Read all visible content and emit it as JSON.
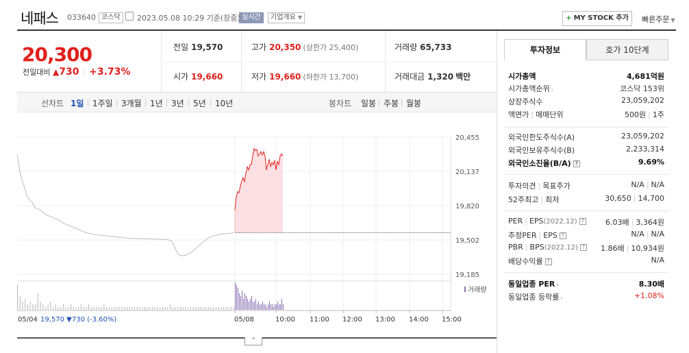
{
  "header": {
    "name": "네패스",
    "code": "033640",
    "market": "코스닥",
    "date": "2023.05.08 10:29 기준(장중)",
    "live": "실시간",
    "corp_overview": "기업개요",
    "mystock": "MY STOCK 추가",
    "quick_order": "빠른주문"
  },
  "price": {
    "current": "20,300",
    "change_label": "전일대비",
    "change": "730",
    "change_pct": "+3.73%",
    "prev_label": "전일",
    "prev": "19,570",
    "high_label": "고가",
    "high": "20,350",
    "upper_limit": "(상한가 25,400)",
    "volume_label": "거래량",
    "volume": "65,733",
    "open_label": "시가",
    "open": "19,660",
    "low_label": "저가",
    "low": "19,660",
    "lower_limit": "(하한가 13,700)",
    "amount_label": "거래대금",
    "amount": "1,320",
    "amount_unit": "백만"
  },
  "tabs": {
    "line_chart": "선차트",
    "periods": [
      "1일",
      "1주일",
      "3개월",
      "1년",
      "3년",
      "5년",
      "10년"
    ],
    "candle_chart": "봉차트",
    "candles": [
      "일봉",
      "주봉",
      "월봉"
    ]
  },
  "chart_data": {
    "type": "line",
    "price_ticks": [
      "20,455",
      "20,137",
      "19,820",
      "19,502",
      "19,185"
    ],
    "ylim": [
      19185,
      20455
    ],
    "prev_close": 19570,
    "volume_label": "거래량",
    "x_labels": [
      "05/04",
      "05/08",
      "10:00",
      "11:00",
      "12:00",
      "13:00",
      "14:00",
      "15:00"
    ],
    "prev_day_summary": {
      "close": "19,570",
      "change": "730",
      "pct": "(-3.60%)"
    },
    "prev_day_series": [
      20300,
      20150,
      20050,
      19980,
      19900,
      19870,
      19850,
      19800,
      19790,
      19780,
      19760,
      19740,
      19730,
      19720,
      19710,
      19700,
      19690,
      19680,
      19660,
      19650,
      19640,
      19630,
      19620,
      19610,
      19600,
      19590,
      19580,
      19570,
      19565,
      19560,
      19555,
      19550,
      19548,
      19545,
      19543,
      19540,
      19538,
      19535,
      19532,
      19530,
      19528,
      19525,
      19522,
      19520,
      19518,
      19517,
      19516,
      19515,
      19515,
      19514,
      19513,
      19512,
      19512,
      19511,
      19510,
      19510,
      19509,
      19508,
      19507,
      19505,
      19500,
      19480,
      19430,
      19380,
      19360,
      19355,
      19360,
      19370,
      19380,
      19400,
      19420,
      19440,
      19460,
      19480,
      19500,
      19520,
      19530,
      19540,
      19545,
      19550,
      19555,
      19558,
      19560,
      19562,
      19565,
      19570
    ],
    "today_series": [
      19780,
      19900,
      19950,
      19940,
      20000,
      20050,
      20080,
      20040,
      20120,
      20180,
      20150,
      20200,
      20200,
      20280,
      20350,
      20330,
      20340,
      20280,
      20300,
      20320,
      20290,
      20320,
      20280,
      20150,
      20200,
      20250,
      20180,
      20220,
      20200,
      20240,
      20150,
      20230,
      20200,
      20280,
      20300,
      20280
    ],
    "prev_volume": [
      9,
      5,
      3,
      4,
      2,
      3,
      2,
      2,
      6,
      3,
      2,
      1,
      2,
      3,
      1,
      2,
      1,
      1,
      2,
      1,
      1,
      2,
      1,
      1,
      1,
      2,
      1,
      1,
      2,
      1,
      1,
      1,
      1,
      1,
      2,
      1,
      1,
      1,
      1,
      1,
      1,
      1,
      1,
      1,
      1,
      1,
      1,
      1,
      1,
      1,
      1,
      1,
      1,
      1,
      1,
      1,
      1,
      1,
      1,
      1,
      2,
      1,
      1,
      1,
      1,
      1,
      1,
      1,
      1,
      1,
      1,
      1,
      1,
      1,
      1,
      1,
      1,
      1,
      1,
      1,
      1,
      1,
      1,
      1,
      1,
      1
    ],
    "today_volume": [
      10,
      9,
      8,
      6,
      5,
      7,
      4,
      6,
      5,
      4,
      3,
      4,
      5,
      3,
      3,
      4,
      2,
      3,
      2,
      2,
      3,
      2,
      2,
      1,
      2,
      3,
      2,
      2,
      1,
      2,
      2,
      3,
      2,
      2,
      4,
      2
    ]
  },
  "panel": {
    "tab_info": "투자정보",
    "tab_quote": "호가 10단계",
    "rows1": [
      {
        "l": "시가총액",
        "r": "4,681억원"
      },
      {
        "l": "시가총액순위",
        "r": "코스닥 153위"
      },
      {
        "l": "상장주식수",
        "r": "23,059,202"
      },
      {
        "l1": "액면가",
        "l2": "매매단위",
        "r1": "500원",
        "r2": "1주"
      }
    ],
    "rows2": [
      {
        "l": "외국인한도주식수(A)",
        "r": "23,059,202"
      },
      {
        "l": "외국인보유주식수(B)",
        "r": "2,233,314"
      },
      {
        "l": "외국인소진율(B/A)",
        "r": "9.69%"
      }
    ],
    "rows3": [
      {
        "l1": "투자의견",
        "l2": "목표주가",
        "r1": "N/A",
        "r2": "N/A"
      },
      {
        "l1": "52주최고",
        "l2": "최저",
        "r1": "30,650",
        "r2": "14,700"
      }
    ],
    "rows4": [
      {
        "l1": "PER",
        "l2": "EPS",
        "note": "(2022.12)",
        "r1": "6.03배",
        "r2": "3,364원"
      },
      {
        "l1": "추정PER",
        "l2": "EPS",
        "r1": "N/A",
        "r2": "N/A"
      },
      {
        "l1": "PBR",
        "l2": "BPS",
        "note": "(2022.12)",
        "r1": "1.86배",
        "r2": "10,934원"
      },
      {
        "l": "배당수익률",
        "r": "N/A"
      }
    ],
    "rows5": [
      {
        "l": "동일업종 PER",
        "r": "8.30배"
      },
      {
        "l": "동일업종 등락률",
        "r": "+1.08%"
      }
    ]
  },
  "colors": {
    "up": "#e0201c",
    "down": "#1f4fb5",
    "line": "#bbbbbb",
    "fill": "#fde0e3"
  }
}
